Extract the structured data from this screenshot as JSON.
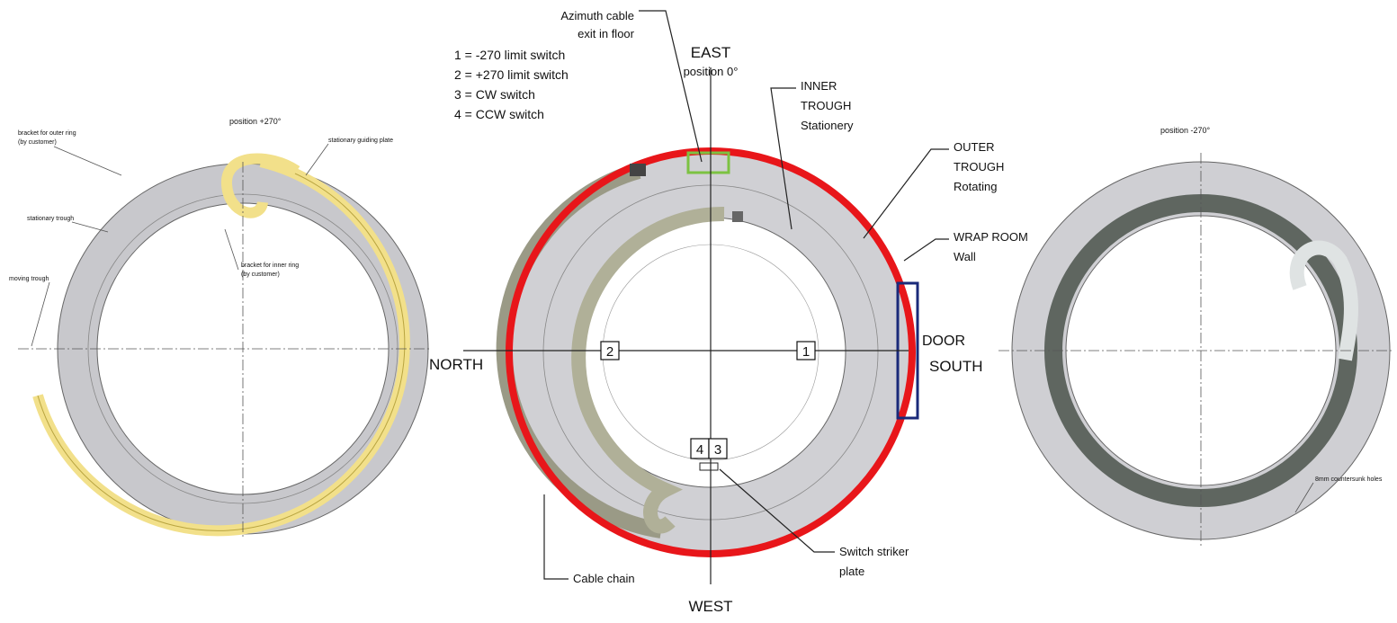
{
  "left": {
    "position": "position +270°",
    "outer_bracket": [
      "bracket for outer ring",
      "(by customer)"
    ],
    "guiding_plate": "stationary guiding plate",
    "stationary_trough": "stationary trough",
    "inner_bracket": [
      "bracket for inner ring",
      "(by customer)"
    ],
    "moving_trough": "moving trough"
  },
  "center": {
    "legend": [
      "1 = -270 limit switch",
      "2 = +270 limit switch",
      "3 = CW switch",
      "4 = CCW switch"
    ],
    "azimuth": [
      "Azimuth cable",
      "exit in floor"
    ],
    "east": "EAST",
    "position": "position 0°",
    "inner_trough": [
      "INNER",
      "TROUGH",
      "Stationery"
    ],
    "outer_trough": [
      "OUTER",
      "TROUGH",
      "Rotating"
    ],
    "wall": [
      "WRAP ROOM",
      "Wall"
    ],
    "door": "DOOR",
    "south": "SOUTH",
    "north": "NORTH",
    "west": "WEST",
    "cable_chain": "Cable chain",
    "striker": [
      "Switch striker",
      "plate"
    ],
    "switches": [
      "1",
      "2",
      "4",
      "3"
    ]
  },
  "right": {
    "position": "position -270°",
    "holes": "8mm countersunk holes"
  }
}
